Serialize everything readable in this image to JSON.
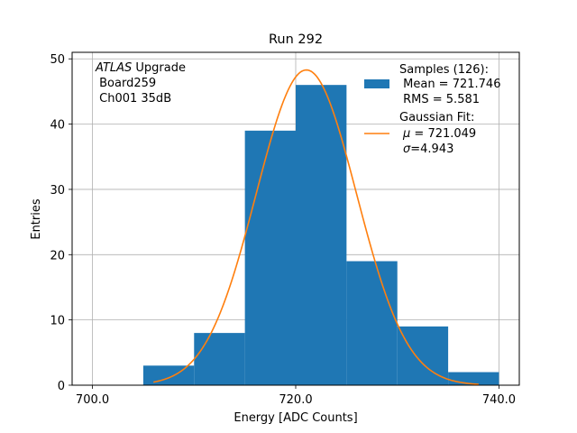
{
  "chart_data": {
    "type": "bar",
    "title": "Run 292",
    "xlabel": "Energy [ADC Counts]",
    "ylabel": "Entries",
    "xlim": [
      698,
      742
    ],
    "ylim": [
      0,
      51
    ],
    "grid": true,
    "xticks": [
      700,
      720,
      740
    ],
    "xtick_labels": [
      "700.0",
      "720.0",
      "740.0"
    ],
    "yticks": [
      0,
      10,
      20,
      30,
      40,
      50
    ],
    "ytick_labels": [
      "0",
      "10",
      "20",
      "30",
      "40",
      "50"
    ],
    "histogram": {
      "bin_edges": [
        705,
        710,
        715,
        720,
        725,
        730,
        735,
        740
      ],
      "counts": [
        3,
        8,
        39,
        46,
        19,
        9,
        2
      ],
      "color": "#1f77b4"
    },
    "fit": {
      "mu": 721.049,
      "sigma": 4.943,
      "amplitude": 48.3,
      "x_range": [
        706,
        738
      ],
      "color": "#ff7f0e"
    },
    "annotation": {
      "line1_italic": "ATLAS",
      "line1_rest": " Upgrade",
      "line2": " Board259",
      "line3": " Ch001 35dB"
    },
    "legend": {
      "placement": "top-right",
      "samples_title": "Samples (126):",
      "samples_mean": " Mean = 721.746",
      "samples_rms": " RMS = 5.581",
      "fit_title": "Gaussian Fit:",
      "fit_mu_symbol": "μ",
      "fit_mu_text": " = 721.049",
      "fit_sigma_symbol": "σ",
      "fit_sigma_text": "=4.943"
    }
  }
}
